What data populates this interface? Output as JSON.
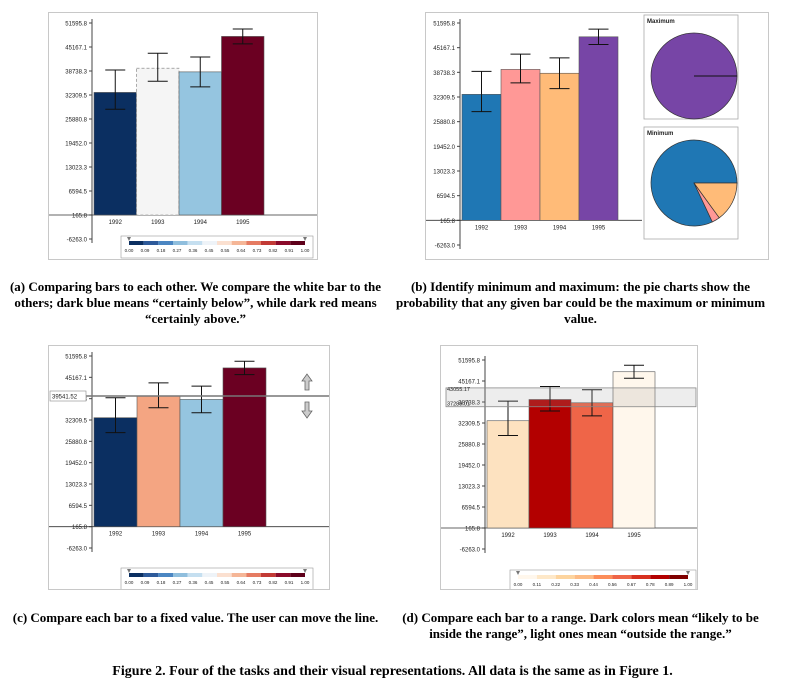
{
  "chart_data": [
    {
      "type": "bar",
      "categories": [
        "1992",
        "1993",
        "1994",
        "1995"
      ],
      "values": [
        33000,
        39500,
        38500,
        48000
      ],
      "error_low": [
        28500,
        36000,
        34500,
        46000
      ],
      "error_high": [
        39000,
        43500,
        42500,
        50000
      ],
      "yticks": [
        "51595.8",
        "45167.1",
        "38738.3",
        "32309.5",
        "25880.8",
        "19452.0",
        "13023.3",
        "6594.5",
        "165.8",
        "-6263.0"
      ],
      "ylim": [
        -6263.0,
        51595.8
      ],
      "colors": [
        "#0b2f61",
        "#f5f5f5",
        "#95c5e0",
        "#6b0022"
      ],
      "legend_ticks": [
        "0.00",
        "0.09",
        "0.18",
        "0.27",
        "0.36",
        "0.45",
        "0.55",
        "0.64",
        "0.73",
        "0.82",
        "0.91",
        "1.00"
      ],
      "legend_colors": [
        "#0b2f61",
        "#2d5a9a",
        "#4b86c2",
        "#8fbedd",
        "#c5dff0",
        "#eef3f8",
        "#fbe0d0",
        "#f5b697",
        "#e57b62",
        "#c23a35",
        "#8a0a2a",
        "#5e001a"
      ]
    },
    {
      "type": "bar",
      "categories": [
        "1992",
        "1993",
        "1994",
        "1995"
      ],
      "values": [
        33000,
        39500,
        38500,
        48000
      ],
      "error_low": [
        28500,
        36000,
        34500,
        46000
      ],
      "error_high": [
        39000,
        43500,
        42500,
        50000
      ],
      "yticks": [
        "51595.8",
        "45167.1",
        "38738.3",
        "32309.5",
        "25880.8",
        "19452.0",
        "13023.3",
        "6594.5",
        "165.8",
        "-6263.0"
      ],
      "ylim": [
        -6263.0,
        51595.8
      ],
      "colors": [
        "#1f77b4",
        "#ff9896",
        "#ffbb78",
        "#7745a6"
      ],
      "pies": [
        {
          "title": "Maximum",
          "values": [
            1.0,
            0.0,
            0.0,
            0.0
          ],
          "colors": [
            "#7745a6",
            "#ff9896",
            "#ffbb78",
            "#1f77b4"
          ]
        },
        {
          "title": "Minimum",
          "values": [
            0.82,
            0.03,
            0.15
          ],
          "colors": [
            "#1f77b4",
            "#ff9896",
            "#ffbb78"
          ]
        }
      ]
    },
    {
      "type": "bar",
      "categories": [
        "1992",
        "1993",
        "1994",
        "1995"
      ],
      "values": [
        33000,
        39500,
        38500,
        48000
      ],
      "error_low": [
        28500,
        36000,
        34500,
        46000
      ],
      "error_high": [
        39000,
        43500,
        42500,
        50000
      ],
      "yticks": [
        "51595.8",
        "45167.1",
        "38738.3",
        "32309.5",
        "25880.8",
        "19452.0",
        "13023.3",
        "6594.5",
        "165.8",
        "-6263.0"
      ],
      "ylim": [
        -6263.0,
        51595.8
      ],
      "colors": [
        "#0b2f61",
        "#f4a582",
        "#95c5e0",
        "#6b0022"
      ],
      "line_value": 39541.52,
      "line_label": "39541.52",
      "legend_ticks": [
        "0.00",
        "0.09",
        "0.18",
        "0.27",
        "0.36",
        "0.45",
        "0.55",
        "0.64",
        "0.73",
        "0.82",
        "0.91",
        "1.00"
      ],
      "legend_colors": [
        "#0b2f61",
        "#2d5a9a",
        "#4b86c2",
        "#8fbedd",
        "#c5dff0",
        "#eef3f8",
        "#fbe0d0",
        "#f5b697",
        "#e57b62",
        "#c23a35",
        "#8a0a2a",
        "#5e001a"
      ]
    },
    {
      "type": "bar",
      "categories": [
        "1992",
        "1993",
        "1994",
        "1995"
      ],
      "values": [
        33000,
        39500,
        38500,
        48000
      ],
      "error_low": [
        28500,
        36000,
        34500,
        46000
      ],
      "error_high": [
        39000,
        43500,
        42500,
        50000
      ],
      "yticks": [
        "51595.8",
        "45167.1",
        "38738.3",
        "32309.5",
        "25880.8",
        "19452.0",
        "13023.3",
        "6594.5",
        "165.8",
        "-6263.0"
      ],
      "ylim": [
        -6263.0,
        51595.8
      ],
      "colors": [
        "#fde2c0",
        "#b30000",
        "#ef6548",
        "#fff7ec"
      ],
      "range": [
        37289.01,
        43055.17
      ],
      "range_labels": [
        "43055.17",
        "37289.01"
      ],
      "legend_ticks": [
        "0.00",
        "0.11",
        "0.22",
        "0.33",
        "0.44",
        "0.56",
        "0.67",
        "0.78",
        "0.89",
        "1.00"
      ],
      "legend_colors": [
        "#fff7ec",
        "#fee8c8",
        "#fdd49e",
        "#fdbb84",
        "#fc8d59",
        "#ef6548",
        "#d7301f",
        "#b30000",
        "#7f0000"
      ]
    }
  ],
  "captions": {
    "a": "(a) Comparing bars to each other. We compare the white bar to the others; dark blue means “certainly below”, while dark red means “certainly above.”",
    "b": "(b) Identify minimum and maximum: the pie charts show the probability that any given bar could be the maximum or minimum value.",
    "c": "(c) Compare each bar to a fixed value. The user can move the line.",
    "d": "(d) Compare each bar to a range. Dark colors mean “likely to be inside the range”, light ones mean “outside the range.”"
  },
  "figure_caption": "Figure 2. Four of the tasks and their visual representations. All data is the same as in Figure 1."
}
